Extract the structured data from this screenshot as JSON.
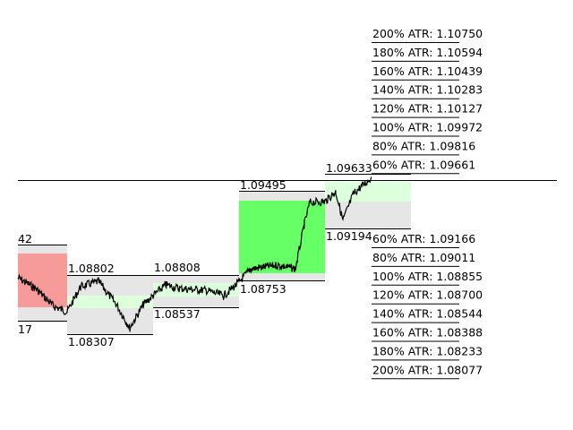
{
  "atr_upper": [
    "200% ATR: 1.10750",
    "180% ATR: 1.10594",
    "160% ATR: 1.10439",
    "140% ATR: 1.10283",
    "120% ATR: 1.10127",
    "100% ATR: 1.09972",
    "80% ATR: 1.09816",
    "60% ATR: 1.09661"
  ],
  "atr_lower": [
    "60% ATR: 1.09166",
    "80% ATR: 1.09011",
    "100% ATR: 1.08855",
    "120% ATR: 1.08700",
    "140% ATR: 1.08544",
    "160% ATR: 1.08388",
    "180% ATR: 1.08233",
    "200% ATR: 1.08077"
  ],
  "days": [
    {
      "high": "42",
      "low": "17"
    },
    {
      "high": "1.08802",
      "low": "1.08307"
    },
    {
      "high": "1.08808",
      "low": "1.08537"
    },
    {
      "high": "1.09495",
      "low": "1.08753"
    },
    {
      "high": "1.09633",
      "low": "1.09194"
    }
  ]
}
